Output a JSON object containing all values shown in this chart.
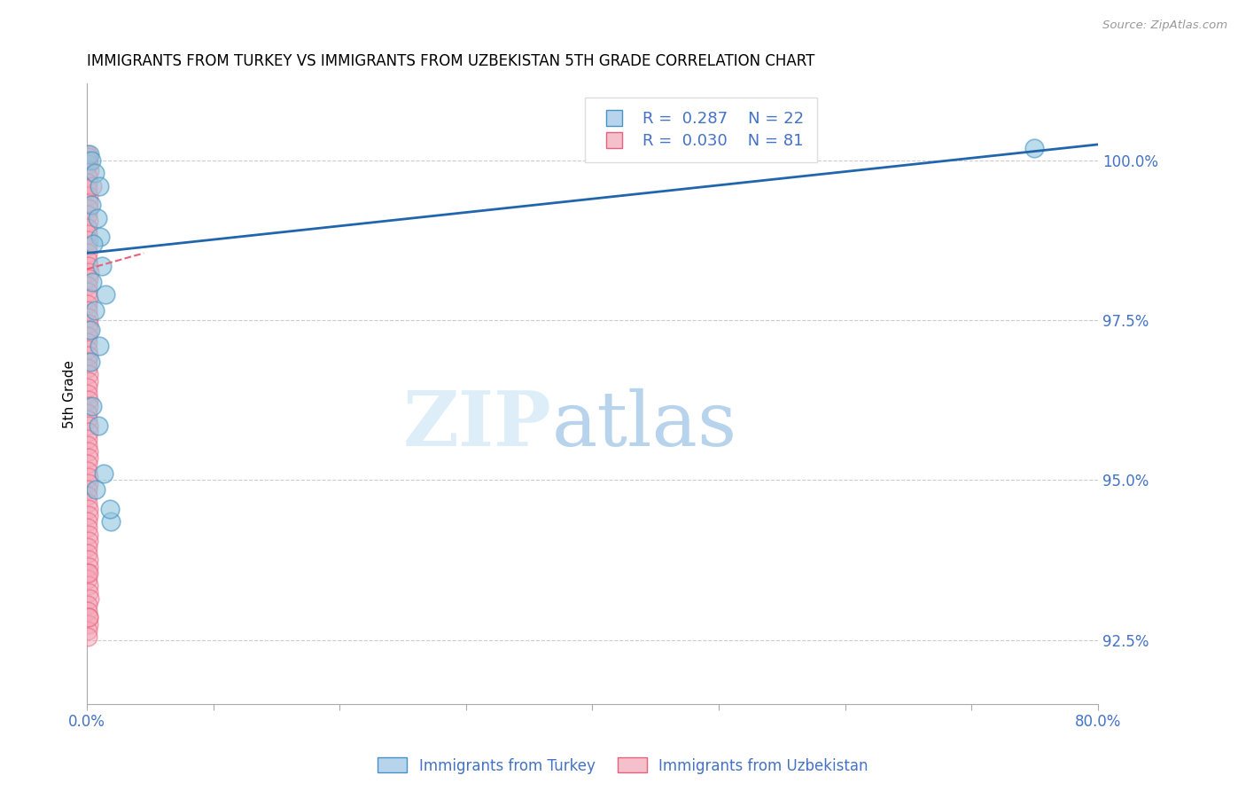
{
  "title": "IMMIGRANTS FROM TURKEY VS IMMIGRANTS FROM UZBEKISTAN 5TH GRADE CORRELATION CHART",
  "source": "Source: ZipAtlas.com",
  "ylabel": "5th Grade",
  "xlim": [
    0.0,
    80.0
  ],
  "ylim": [
    91.5,
    101.2
  ],
  "yticks": [
    92.5,
    95.0,
    97.5,
    100.0
  ],
  "ytick_labels": [
    "92.5%",
    "95.0%",
    "97.5%",
    "100.0%"
  ],
  "xticks": [
    0.0,
    10.0,
    20.0,
    30.0,
    40.0,
    50.0,
    60.0,
    70.0,
    80.0
  ],
  "xtick_labels": [
    "0.0%",
    "",
    "",
    "",
    "",
    "",
    "",
    "",
    "80.0%"
  ],
  "legend_r_turkey": "R =  0.287",
  "legend_n_turkey": "N = 22",
  "legend_r_uzbekistan": "R =  0.030",
  "legend_n_uzbekistan": "N = 81",
  "turkey_color": "#92c5de",
  "turkey_edge_color": "#4393c3",
  "uzbekistan_color": "#f4a6b8",
  "uzbekistan_edge_color": "#e8607a",
  "trend_turkey_color": "#2166ac",
  "trend_uzbekistan_color": "#e8607a",
  "turkey_trend_x0": 0.0,
  "turkey_trend_y0": 98.55,
  "turkey_trend_x1": 80.0,
  "turkey_trend_y1": 100.25,
  "uzbek_trend_x0": 0.0,
  "uzbek_trend_y0": 98.3,
  "uzbek_trend_x1": 4.5,
  "uzbek_trend_y1": 98.55,
  "turkey_points_x": [
    0.18,
    0.38,
    0.65,
    0.95,
    0.38,
    0.82,
    1.05,
    0.48,
    1.2,
    0.42,
    1.5,
    0.62,
    0.28,
    0.95,
    0.28,
    0.45,
    0.88,
    1.35,
    0.72,
    1.9,
    1.8,
    75.0
  ],
  "turkey_points_y": [
    100.1,
    100.0,
    99.8,
    99.6,
    99.3,
    99.1,
    98.8,
    98.7,
    98.35,
    98.1,
    97.9,
    97.65,
    97.35,
    97.1,
    96.85,
    96.15,
    95.85,
    95.1,
    94.85,
    94.35,
    94.55,
    100.2
  ],
  "uzbekistan_points_x": [
    0.05,
    0.12,
    0.09,
    0.15,
    0.19,
    0.06,
    0.1,
    0.09,
    0.14,
    0.11,
    0.17,
    0.08,
    0.12,
    0.07,
    0.1,
    0.15,
    0.09,
    0.06,
    0.1,
    0.13,
    0.18,
    0.11,
    0.08,
    0.09,
    0.15,
    0.07,
    0.1,
    0.11,
    0.13,
    0.16,
    0.09,
    0.08,
    0.1,
    0.14,
    0.07,
    0.09,
    0.11,
    0.15,
    0.08,
    0.1,
    0.12,
    0.16,
    0.07,
    0.09,
    0.11,
    0.14,
    0.08,
    0.1,
    0.12,
    0.15,
    0.07,
    0.09,
    0.11,
    0.14,
    0.08,
    0.06,
    0.1,
    0.12,
    0.15,
    0.09,
    0.07,
    0.11,
    0.14,
    0.08,
    0.1,
    0.12,
    0.16,
    0.07,
    0.09,
    0.11,
    0.14,
    0.19,
    0.08,
    0.1,
    0.12,
    0.15,
    0.09,
    0.07,
    0.11,
    0.14,
    0.4
  ],
  "uzbekistan_points_y": [
    100.1,
    100.05,
    100.0,
    99.95,
    99.85,
    99.75,
    99.65,
    99.55,
    99.45,
    99.35,
    99.25,
    99.15,
    99.05,
    98.95,
    98.85,
    98.75,
    98.65,
    98.55,
    98.45,
    98.35,
    98.25,
    98.15,
    98.05,
    97.95,
    97.85,
    97.75,
    97.65,
    97.55,
    97.45,
    97.35,
    97.25,
    97.15,
    97.05,
    96.95,
    96.85,
    96.75,
    96.65,
    96.55,
    96.45,
    96.35,
    96.25,
    96.15,
    96.05,
    95.95,
    95.85,
    95.75,
    95.65,
    95.55,
    95.45,
    95.35,
    95.25,
    95.15,
    95.05,
    94.95,
    94.85,
    94.75,
    94.65,
    94.55,
    94.45,
    94.35,
    94.25,
    94.15,
    94.05,
    93.95,
    93.85,
    93.75,
    93.65,
    93.55,
    93.45,
    93.35,
    93.25,
    93.15,
    93.05,
    92.95,
    92.85,
    92.75,
    92.65,
    92.55,
    92.85,
    93.55,
    99.6
  ]
}
